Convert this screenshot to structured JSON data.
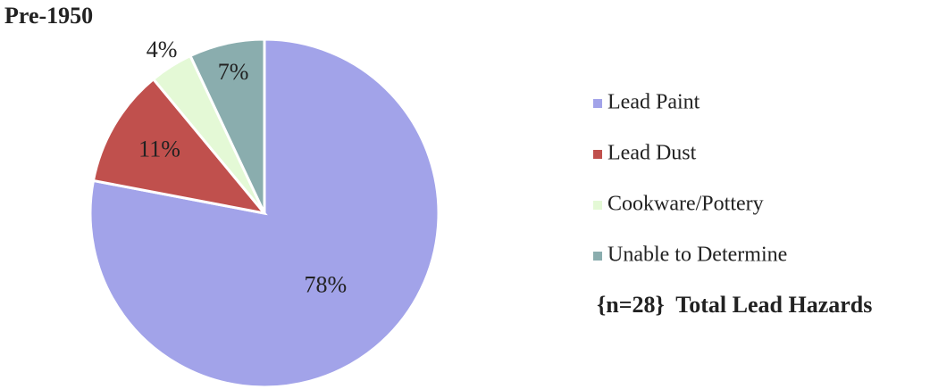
{
  "chart_data": {
    "type": "pie",
    "title": "Pre-1950",
    "categories": [
      "Lead Paint",
      "Lead Dust",
      "Cookware/Pottery",
      "Unable to Determine"
    ],
    "values": [
      78,
      11,
      4,
      7
    ],
    "value_labels": [
      "78%",
      "11%",
      "4%",
      "7%"
    ],
    "colors": [
      "#a2a3e9",
      "#c0504d",
      "#e4f9d6",
      "#8aadae"
    ],
    "legend": "right",
    "annotation": "{n=28}  Total Lead Hazards"
  }
}
